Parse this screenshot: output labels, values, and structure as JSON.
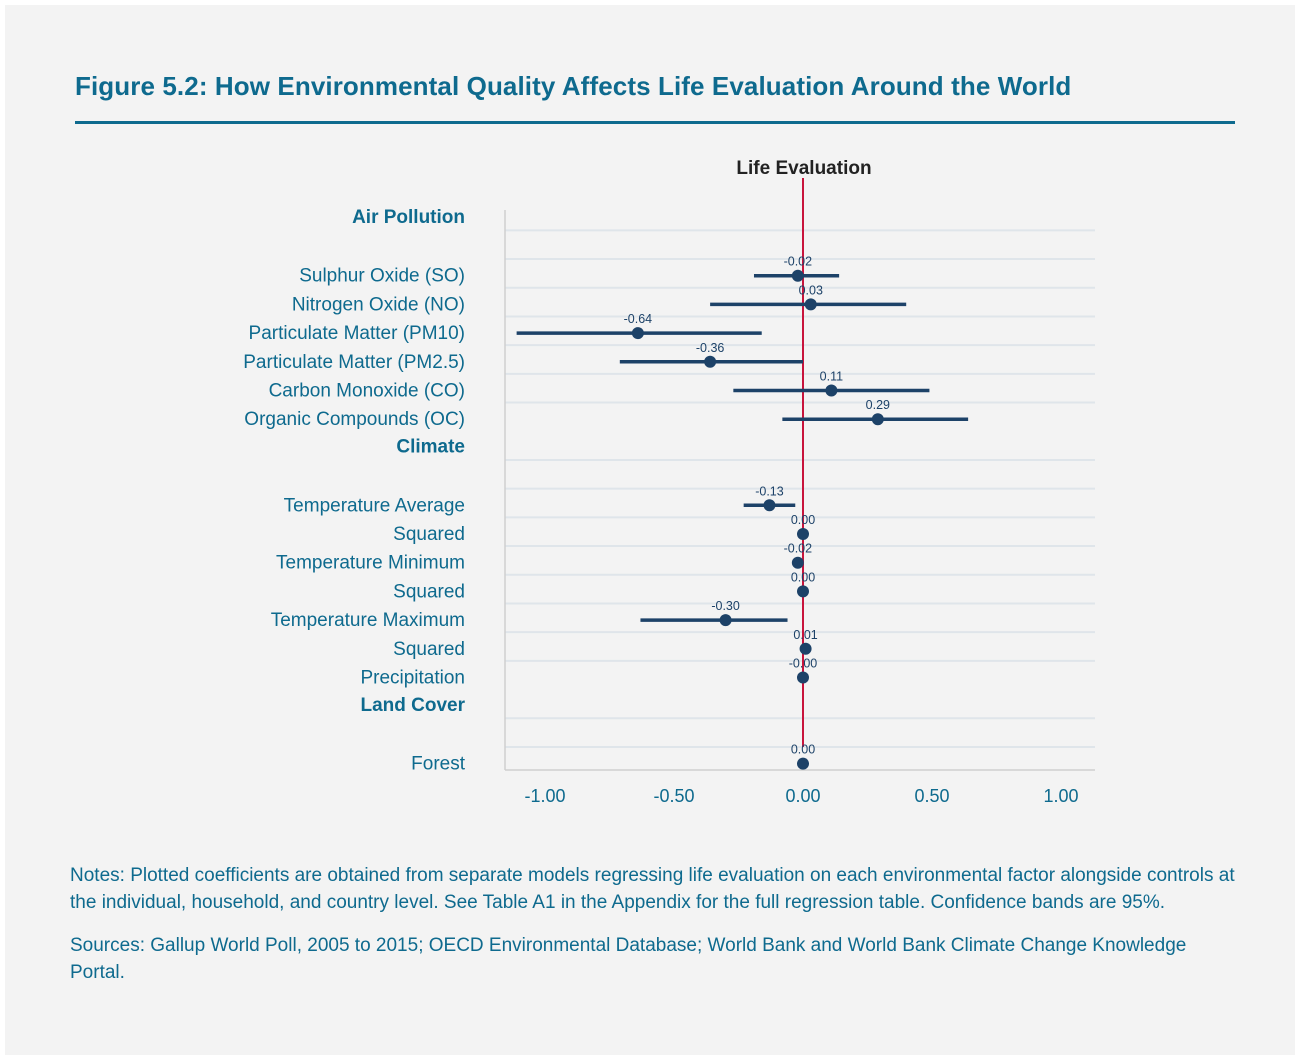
{
  "title": "Figure 5.2: How Environmental Quality Affects Life Evaluation Around the World",
  "notes": "Notes: Plotted coefficients are obtained from separate models regressing life evaluation on each environmental factor alongside controls at the individual, household, and country level. See Table A1 in the Appendix for the full regression table. Confidence bands are 95%.",
  "sources": "Sources: Gallup World Poll, 2005 to 2015; OECD Environmental Database; World Bank and World Bank Climate Change Knowledge Portal.",
  "colors": {
    "title": "#0e6a8e",
    "point": "#1d4268",
    "zero_line": "#c8143c",
    "grid": "#dfe5ea"
  },
  "chart_data": {
    "type": "scatter",
    "subtype": "coefficient-plot",
    "title": "Life Evaluation",
    "xlim": [
      -1.15,
      1.13
    ],
    "xticks": [
      -1.0,
      -0.5,
      0.0,
      0.5,
      1.0
    ],
    "xtick_labels": [
      "-1.00",
      "-0.50",
      "0.00",
      "0.50",
      "1.00"
    ],
    "reference_line": 0,
    "grid": "horizontal",
    "groups": [
      {
        "name": "Air Pollution",
        "items": [
          {
            "label": "Sulphur Oxide (SO)",
            "value": -0.02,
            "value_label": "-0.02",
            "ci": [
              -0.19,
              0.14
            ]
          },
          {
            "label": "Nitrogen Oxide (NO)",
            "value": 0.03,
            "value_label": "0.03",
            "ci": [
              -0.36,
              0.4
            ]
          },
          {
            "label": "Particulate Matter (PM10)",
            "value": -0.64,
            "value_label": "-0.64",
            "ci": [
              -1.11,
              -0.16
            ]
          },
          {
            "label": "Particulate Matter (PM2.5)",
            "value": -0.36,
            "value_label": "-0.36",
            "ci": [
              -0.71,
              0.0
            ]
          },
          {
            "label": "Carbon Monoxide (CO)",
            "value": 0.11,
            "value_label": "0.11",
            "ci": [
              -0.27,
              0.49
            ]
          },
          {
            "label": "Organic Compounds (OC)",
            "value": 0.29,
            "value_label": "0.29",
            "ci": [
              -0.08,
              0.64
            ]
          }
        ]
      },
      {
        "name": "Climate",
        "items": [
          {
            "label": "Temperature Average",
            "value": -0.13,
            "value_label": "-0.13",
            "ci": [
              -0.23,
              -0.03
            ]
          },
          {
            "label": "Squared",
            "value": 0.0,
            "value_label": "0.00",
            "ci": [
              0.0,
              0.0
            ]
          },
          {
            "label": "Temperature Minimum",
            "value": -0.02,
            "value_label": "-0.02",
            "ci": [
              -0.04,
              0.0
            ]
          },
          {
            "label": "Squared",
            "value": 0.0,
            "value_label": "0.00",
            "ci": [
              0.0,
              0.0
            ]
          },
          {
            "label": "Temperature Maximum",
            "value": -0.3,
            "value_label": "-0.30",
            "ci": [
              -0.63,
              -0.06
            ]
          },
          {
            "label": "Squared",
            "value": 0.01,
            "value_label": "0.01",
            "ci": [
              0.01,
              0.01
            ]
          },
          {
            "label": "Precipitation",
            "value": 0.0,
            "value_label": "-0.00",
            "ci": [
              0.0,
              0.0
            ]
          }
        ]
      },
      {
        "name": "Land Cover",
        "items": [
          {
            "label": "Forest",
            "value": 0.0,
            "value_label": "0.00",
            "ci": [
              0.0,
              0.0
            ]
          }
        ]
      }
    ]
  }
}
